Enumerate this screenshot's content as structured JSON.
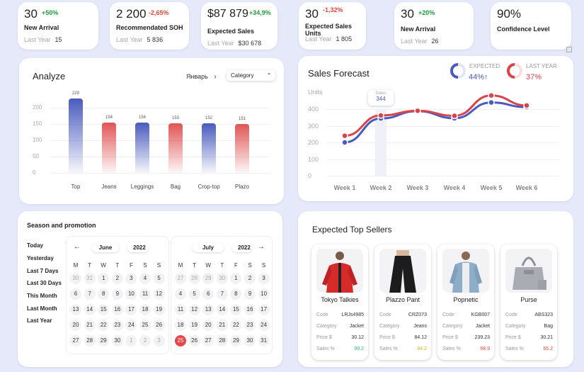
{
  "kpis": [
    {
      "value": "30",
      "change": "+50%",
      "trend": "up",
      "label": "New Arrival",
      "sub_label": "Last Year",
      "sub_value": "15"
    },
    {
      "value": "2 200",
      "change": "-2,65%",
      "trend": "down",
      "label": "Recommendated SOH",
      "sub_label": "Last Year",
      "sub_value": "5 836"
    },
    {
      "value": "$87 879",
      "change": "+34,9%",
      "trend": "up",
      "label": "Expected Sales",
      "sub_label": "Last Year",
      "sub_value": "$30 678"
    },
    {
      "value": "30",
      "change": "-1,32%",
      "trend": "down",
      "label": "Expected Sales Units",
      "sub_label": "Last Year",
      "sub_value": "1 805"
    },
    {
      "value": "30",
      "change": "+20%",
      "trend": "up",
      "label": "New Arrival",
      "sub_label": "Last Year",
      "sub_value": "26"
    },
    {
      "value": "90%",
      "change": "",
      "trend": "",
      "label": "Confidence Level",
      "sub_label": "",
      "sub_value": ""
    }
  ],
  "analyze": {
    "title": "Analyze",
    "month": "Январь",
    "category_label": "Category",
    "chart_data": {
      "type": "bar",
      "categories": [
        "Top",
        "Jeans",
        "Leggings",
        "Bag",
        "Crop-top",
        "Plazo"
      ],
      "values": [
        229,
        154,
        154,
        153,
        152,
        151
      ],
      "bar_colors": [
        "#4a5bbd",
        "#e05555",
        "#4a5bbd",
        "#e05555",
        "#4a5bbd",
        "#e05555"
      ],
      "yticks": [
        "200",
        "150",
        "100",
        "50",
        "0"
      ],
      "ylim": [
        0,
        250
      ]
    }
  },
  "forecast": {
    "title": "Sales Forecast",
    "expected_label": "EXPECTED",
    "expected_value": "44%↑",
    "last_year_label": "LAST YEAR",
    "last_year_value": "37%",
    "tooltip_label": "Sales",
    "tooltip_value": "344",
    "chart_data": {
      "type": "line",
      "ylabel": "Units",
      "yticks": [
        "400",
        "300",
        "200",
        "100",
        "0"
      ],
      "x": [
        "Week 1",
        "Week 2",
        "Week 3",
        "Week 4",
        "Week 5",
        "Week 6"
      ],
      "ylim": [
        0,
        500
      ],
      "series": [
        {
          "name": "EXPECTED",
          "color": "#4a5bbd",
          "values": [
            200,
            344,
            388,
            345,
            440,
            412
          ]
        },
        {
          "name": "LAST YEAR",
          "color": "#d9434a",
          "values": [
            240,
            362,
            390,
            360,
            482,
            422
          ]
        }
      ]
    }
  },
  "season": {
    "title": "Season and promotion",
    "presets": [
      "Today",
      "Yesterday",
      "Last 7 Days",
      "Last 30 Days",
      "This Month",
      "Last Month",
      "Last Year"
    ],
    "weekdays": [
      "M",
      "T",
      "W",
      "T",
      "F",
      "S",
      "S"
    ],
    "left_month": "June",
    "left_year": "2022",
    "right_month": "July",
    "right_year": "2022",
    "left_days": [
      [
        "30",
        "31",
        "1",
        "2",
        "3",
        "4",
        "5"
      ],
      [
        "6",
        "7",
        "8",
        "9",
        "10",
        "11",
        "12"
      ],
      [
        "13",
        "14",
        "15",
        "16",
        "17",
        "18",
        "19"
      ],
      [
        "20",
        "21",
        "22",
        "23",
        "24",
        "25",
        "26"
      ],
      [
        "27",
        "28",
        "29",
        "30",
        "1",
        "2",
        "3"
      ]
    ],
    "right_days": [
      [
        "27",
        "28",
        "29",
        "30",
        "1",
        "2",
        "3"
      ],
      [
        "4",
        "5",
        "6",
        "7",
        "8",
        "9",
        "10"
      ],
      [
        "11",
        "12",
        "13",
        "14",
        "15",
        "16",
        "17"
      ],
      [
        "18",
        "19",
        "20",
        "21",
        "22",
        "23",
        "24"
      ],
      [
        "25",
        "26",
        "27",
        "28",
        "29",
        "30",
        "31"
      ]
    ],
    "selected_day": "25"
  },
  "sellers": {
    "title": "Expected Top Sellers",
    "labels": {
      "code": "Code",
      "category": "Category",
      "price": "Price $",
      "sales": "Sales %"
    },
    "items": [
      {
        "name": "Tokyo Talkies",
        "code": "LRJs4985",
        "category": "Jacket",
        "price": "30.12",
        "sales": "99.2",
        "sales_color": "#2bb673"
      },
      {
        "name": "Plazzo Pant",
        "code": "CRZ073",
        "category": "Jeans",
        "price": "84.12",
        "sales": "84.2",
        "sales_color": "#d4b21c"
      },
      {
        "name": "Popnetic",
        "code": "KGB007",
        "category": "Jacket",
        "price": "239.23",
        "sales": "68.9",
        "sales_color": "#e2473a"
      },
      {
        "name": "Purse",
        "code": "ABS323",
        "category": "Bag",
        "price": "30.21",
        "sales": "65.2",
        "sales_color": "#e2473a"
      }
    ]
  }
}
